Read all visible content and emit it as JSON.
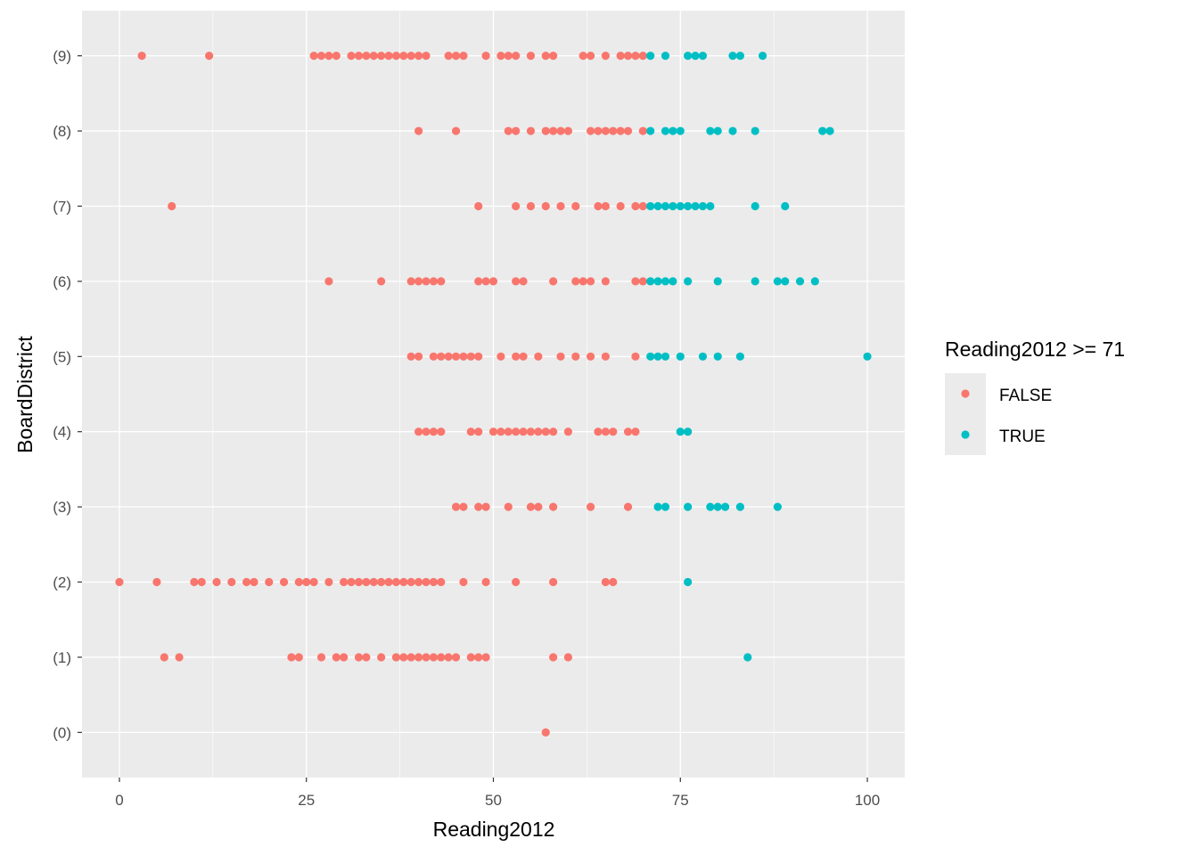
{
  "chart_data": {
    "type": "scatter",
    "xlabel": "Reading2012",
    "ylabel": "BoardDistrict",
    "xlim": [
      -5,
      105
    ],
    "x_ticks": [
      0,
      25,
      50,
      75,
      100
    ],
    "x_tick_labels": [
      "0",
      "25",
      "50",
      "75",
      "100"
    ],
    "categories": [
      "(0)",
      "(1)",
      "(2)",
      "(3)",
      "(4)",
      "(5)",
      "(6)",
      "(7)",
      "(8)",
      "(9)"
    ],
    "grid": true,
    "legend": {
      "title": "Reading2012 >= 71",
      "position": "right",
      "entries": [
        {
          "label": "FALSE",
          "color": "#F8766D"
        },
        {
          "label": "TRUE",
          "color": "#00BFC4"
        }
      ]
    },
    "threshold": 71,
    "series": [
      {
        "category": "(9)",
        "x": [
          3,
          12,
          26,
          27,
          28,
          29,
          31,
          32,
          33,
          34,
          35,
          36,
          37,
          38,
          39,
          40,
          41,
          44,
          45,
          46,
          49,
          51,
          52,
          53,
          55,
          57,
          58,
          62,
          63,
          65,
          67,
          68,
          69,
          70,
          71,
          73,
          76,
          77,
          78,
          82,
          83,
          86
        ]
      },
      {
        "category": "(8)",
        "x": [
          40,
          45,
          52,
          53,
          55,
          57,
          58,
          59,
          60,
          63,
          64,
          65,
          66,
          67,
          68,
          70,
          71,
          73,
          74,
          75,
          79,
          80,
          82,
          85,
          94,
          95
        ]
      },
      {
        "category": "(7)",
        "x": [
          7,
          48,
          53,
          55,
          57,
          59,
          61,
          64,
          65,
          67,
          69,
          70,
          71,
          72,
          73,
          74,
          75,
          76,
          77,
          78,
          79,
          85,
          89
        ]
      },
      {
        "category": "(6)",
        "x": [
          28,
          35,
          39,
          40,
          41,
          42,
          43,
          48,
          49,
          50,
          53,
          54,
          58,
          61,
          62,
          63,
          65,
          69,
          70,
          71,
          72,
          73,
          74,
          76,
          80,
          85,
          88,
          89,
          91,
          93
        ]
      },
      {
        "category": "(5)",
        "x": [
          39,
          40,
          42,
          43,
          44,
          45,
          46,
          47,
          48,
          51,
          53,
          54,
          56,
          59,
          61,
          63,
          65,
          69,
          71,
          72,
          73,
          75,
          78,
          80,
          83,
          100
        ]
      },
      {
        "category": "(4)",
        "x": [
          40,
          41,
          42,
          43,
          47,
          48,
          50,
          51,
          52,
          53,
          54,
          55,
          56,
          57,
          58,
          60,
          64,
          65,
          66,
          68,
          69,
          75,
          76
        ]
      },
      {
        "category": "(3)",
        "x": [
          45,
          46,
          48,
          49,
          52,
          55,
          56,
          58,
          63,
          68,
          72,
          73,
          76,
          79,
          80,
          81,
          83,
          88
        ]
      },
      {
        "category": "(2)",
        "x": [
          0,
          5,
          10,
          11,
          13,
          15,
          17,
          18,
          20,
          22,
          24,
          25,
          26,
          28,
          30,
          31,
          32,
          33,
          34,
          35,
          36,
          37,
          38,
          39,
          40,
          41,
          42,
          43,
          46,
          49,
          53,
          58,
          65,
          66,
          76
        ]
      },
      {
        "category": "(1)",
        "x": [
          6,
          8,
          23,
          24,
          27,
          29,
          30,
          32,
          33,
          35,
          37,
          38,
          39,
          40,
          41,
          42,
          43,
          44,
          45,
          47,
          48,
          49,
          58,
          60,
          84
        ]
      },
      {
        "category": "(0)",
        "x": [
          57
        ]
      }
    ]
  }
}
